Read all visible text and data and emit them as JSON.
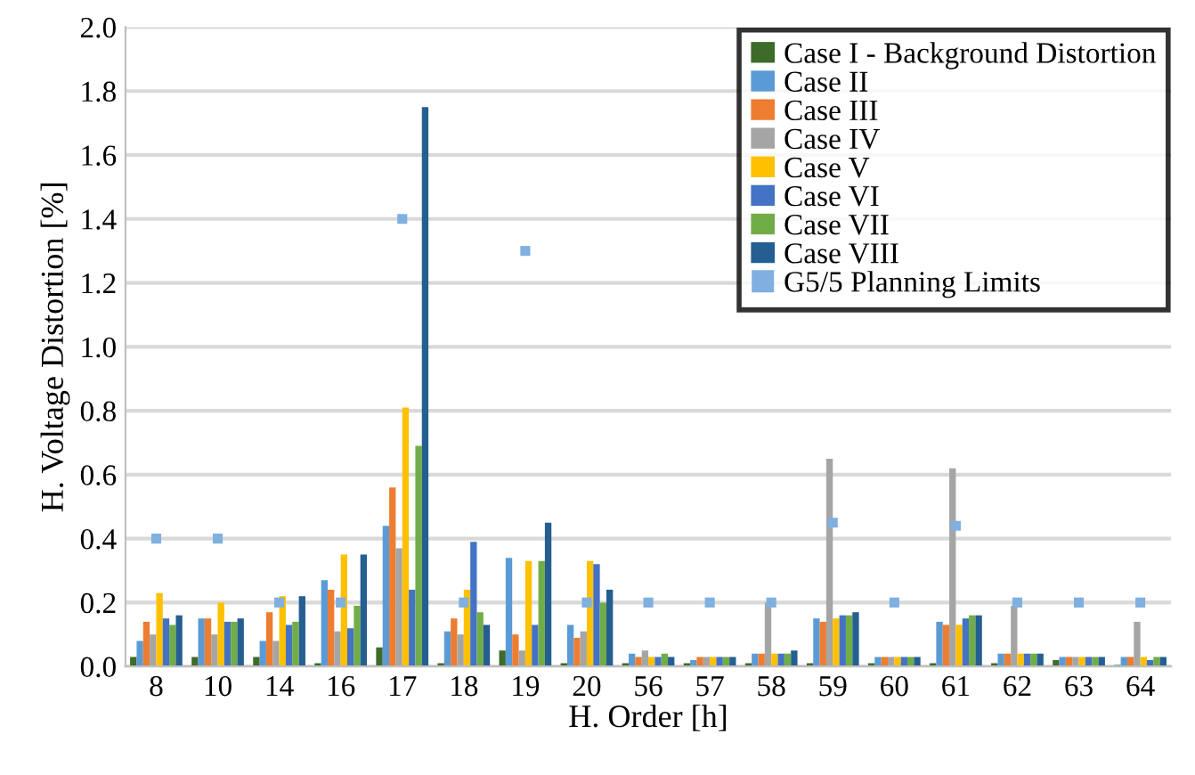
{
  "chart_data": {
    "type": "bar",
    "xlabel": "H. Order [h]",
    "ylabel": "H. Voltage Distortion [%]",
    "categories": [
      "8",
      "10",
      "14",
      "16",
      "17",
      "18",
      "19",
      "20",
      "56",
      "57",
      "58",
      "59",
      "60",
      "61",
      "62",
      "63",
      "64"
    ],
    "series": [
      {
        "name": "Case I - Background Distortion",
        "color": "#3d6b2a",
        "values": [
          0.03,
          0.03,
          0.03,
          0.01,
          0.06,
          0.01,
          0.05,
          0.01,
          0.01,
          0.01,
          0.01,
          0.01,
          0.01,
          0.01,
          0.01,
          0.02,
          0.005
        ]
      },
      {
        "name": "Case II",
        "color": "#5b9bd5",
        "values": [
          0.08,
          0.15,
          0.08,
          0.27,
          0.44,
          0.11,
          0.34,
          0.13,
          0.04,
          0.02,
          0.04,
          0.15,
          0.03,
          0.14,
          0.04,
          0.03,
          0.03
        ]
      },
      {
        "name": "Case III",
        "color": "#ed7d31",
        "values": [
          0.14,
          0.15,
          0.17,
          0.24,
          0.56,
          0.15,
          0.1,
          0.09,
          0.03,
          0.03,
          0.04,
          0.14,
          0.03,
          0.13,
          0.04,
          0.03,
          0.03
        ]
      },
      {
        "name": "Case IV",
        "color": "#a5a5a5",
        "values": [
          0.1,
          0.1,
          0.08,
          0.11,
          0.37,
          0.1,
          0.05,
          0.11,
          0.05,
          0.03,
          0.2,
          0.65,
          0.03,
          0.62,
          0.19,
          0.03,
          0.14
        ]
      },
      {
        "name": "Case V",
        "color": "#ffc000",
        "values": [
          0.23,
          0.2,
          0.22,
          0.35,
          0.81,
          0.24,
          0.33,
          0.33,
          0.03,
          0.03,
          0.04,
          0.15,
          0.03,
          0.13,
          0.04,
          0.03,
          0.03
        ]
      },
      {
        "name": "Case VI",
        "color": "#4472c4",
        "values": [
          0.15,
          0.14,
          0.13,
          0.12,
          0.24,
          0.39,
          0.13,
          0.32,
          0.03,
          0.03,
          0.04,
          0.16,
          0.03,
          0.15,
          0.04,
          0.03,
          0.02
        ]
      },
      {
        "name": "Case VII",
        "color": "#70ad47",
        "values": [
          0.13,
          0.14,
          0.14,
          0.19,
          0.69,
          0.17,
          0.33,
          0.2,
          0.04,
          0.03,
          0.04,
          0.16,
          0.03,
          0.16,
          0.04,
          0.03,
          0.03
        ]
      },
      {
        "name": "Case VIII",
        "color": "#255e91",
        "values": [
          0.16,
          0.15,
          0.22,
          0.35,
          1.75,
          0.13,
          0.45,
          0.24,
          0.03,
          0.03,
          0.05,
          0.17,
          0.03,
          0.16,
          0.04,
          0.03,
          0.03
        ]
      },
      {
        "name": "G5/5 Planning Limits",
        "color": "#7fb0e0",
        "type": "scatter",
        "marker": "square",
        "values": [
          0.4,
          0.4,
          0.2,
          0.2,
          1.4,
          0.2,
          1.3,
          0.2,
          0.2,
          0.2,
          0.2,
          0.45,
          0.2,
          0.44,
          0.2,
          0.2,
          0.2
        ]
      }
    ],
    "ylim": [
      0,
      2.0
    ],
    "yticks": [
      {
        "value": 0,
        "label": "0.0"
      },
      {
        "value": 0.2,
        "label": "0.2"
      },
      {
        "value": 0.4,
        "label": "0.4"
      },
      {
        "value": 0.6,
        "label": "0.6"
      },
      {
        "value": 0.8,
        "label": "0.8"
      },
      {
        "value": 1.0,
        "label": "1.0"
      },
      {
        "value": 1.2,
        "label": "1.2"
      },
      {
        "value": 1.4,
        "label": "1.4"
      },
      {
        "value": 1.6,
        "label": "1.6"
      },
      {
        "value": 1.8,
        "label": "1.8"
      },
      {
        "value": 2.0,
        "label": "2.0"
      }
    ],
    "grid": "y",
    "legend": "top right"
  }
}
